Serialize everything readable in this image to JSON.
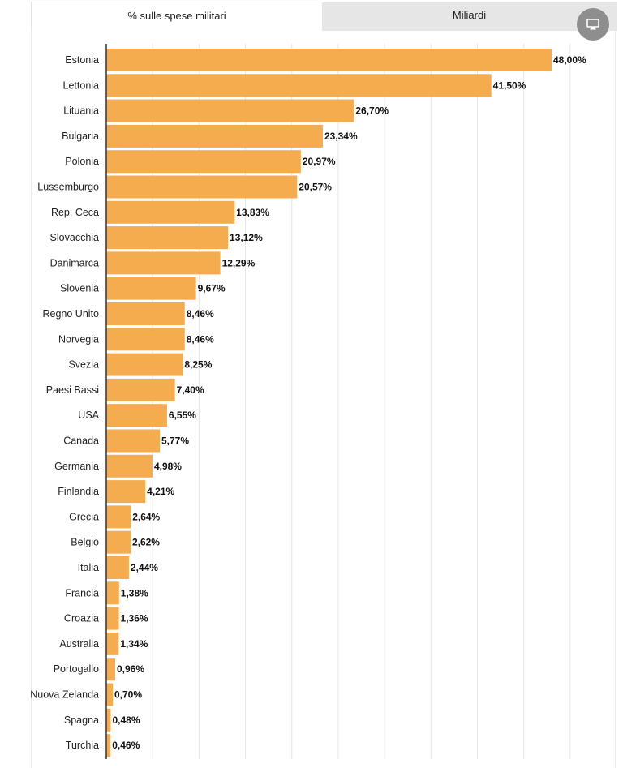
{
  "tabs": [
    {
      "label": "% sulle spese militari",
      "active": true
    },
    {
      "label": "Miliardi",
      "active": false
    }
  ],
  "device_button": {
    "icon": "monitor-icon"
  },
  "colors": {
    "bar": "#f4ac4f",
    "axis": "#333333",
    "grid": "#e6e6e6"
  },
  "chart_data": {
    "type": "bar",
    "orientation": "horizontal",
    "categories": [
      "Estonia",
      "Lettonia",
      "Lituania",
      "Bulgaria",
      "Polonia",
      "Lussemburgo",
      "Rep. Ceca",
      "Slovacchia",
      "Danimarca",
      "Slovenia",
      "Regno Unito",
      "Norvegia",
      "Svezia",
      "Paesi Bassi",
      "USA",
      "Canada",
      "Germania",
      "Finlandia",
      "Grecia",
      "Belgio",
      "Italia",
      "Francia",
      "Croazia",
      "Australia",
      "Portogallo",
      "Nuova Zelanda",
      "Spagna",
      "Turchia"
    ],
    "values": [
      48.0,
      41.5,
      26.7,
      23.34,
      20.97,
      20.57,
      13.83,
      13.12,
      12.29,
      9.67,
      8.46,
      8.46,
      8.25,
      7.4,
      6.55,
      5.77,
      4.98,
      4.21,
      2.64,
      2.62,
      2.44,
      1.38,
      1.36,
      1.34,
      0.96,
      0.7,
      0.48,
      0.46
    ],
    "value_labels": [
      "48,00%",
      "41,50%",
      "26,70%",
      "23,34%",
      "20,97%",
      "20,57%",
      "13,83%",
      "13,12%",
      "12,29%",
      "9,67%",
      "8,46%",
      "8,46%",
      "8,25%",
      "7,40%",
      "6,55%",
      "5,77%",
      "4,98%",
      "4,21%",
      "2,64%",
      "2,62%",
      "2,44%",
      "1,38%",
      "1,36%",
      "1,34%",
      "0,96%",
      "0,70%",
      "0,48%",
      "0,46%"
    ],
    "xlim": [
      0,
      55
    ],
    "grid": true,
    "grid_step": 5,
    "title": "",
    "xlabel": "",
    "ylabel": ""
  }
}
